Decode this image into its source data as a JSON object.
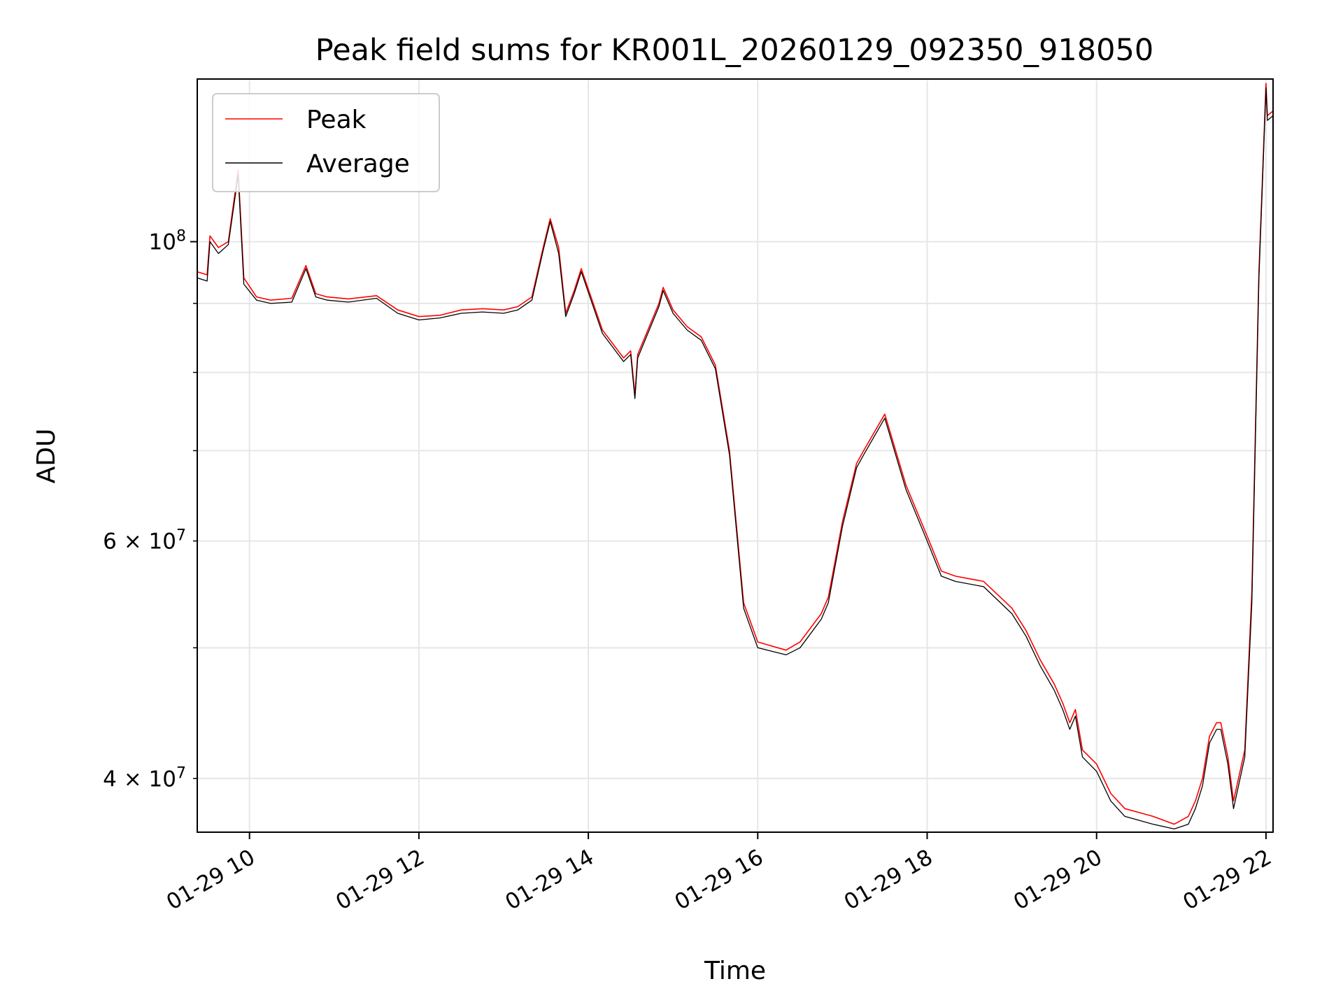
{
  "chart_data": {
    "type": "line",
    "title": "Peak field sums for KR001L_20260129_092350_918050",
    "xlabel": "Time",
    "ylabel": "ADU",
    "yscale": "log",
    "ylim": [
      36500000,
      132000000
    ],
    "xlim": [
      "2026-01-29 09:23",
      "2026-01-29 22:05"
    ],
    "grid": true,
    "legend_position": "top-left",
    "x_ticks": [
      "01-29 10",
      "01-29 12",
      "01-29 14",
      "01-29 16",
      "01-29 18",
      "01-29 20",
      "01-29 22"
    ],
    "y_ticks_major": [
      "10^8"
    ],
    "y_ticks_minor": [
      "6 × 10^7",
      "4 × 10^7"
    ],
    "series": [
      {
        "name": "Peak",
        "color": "#ff0000",
        "x": [
          "2026-01-29 09:23",
          "2026-01-29 09:30",
          "2026-01-29 09:32",
          "2026-01-29 09:38",
          "2026-01-29 09:45",
          "2026-01-29 09:52",
          "2026-01-29 09:56",
          "2026-01-29 10:05",
          "2026-01-29 10:15",
          "2026-01-29 10:30",
          "2026-01-29 10:40",
          "2026-01-29 10:47",
          "2026-01-29 10:55",
          "2026-01-29 11:10",
          "2026-01-29 11:30",
          "2026-01-29 11:45",
          "2026-01-29 12:00",
          "2026-01-29 12:15",
          "2026-01-29 12:30",
          "2026-01-29 12:45",
          "2026-01-29 13:00",
          "2026-01-29 13:10",
          "2026-01-29 13:20",
          "2026-01-29 13:28",
          "2026-01-29 13:33",
          "2026-01-29 13:39",
          "2026-01-29 13:44",
          "2026-01-29 13:50",
          "2026-01-29 13:55",
          "2026-01-29 14:10",
          "2026-01-29 14:25",
          "2026-01-29 14:30",
          "2026-01-29 14:33",
          "2026-01-29 14:35",
          "2026-01-29 14:50",
          "2026-01-29 14:53",
          "2026-01-29 15:00",
          "2026-01-29 15:10",
          "2026-01-29 15:20",
          "2026-01-29 15:30",
          "2026-01-29 15:40",
          "2026-01-29 15:50",
          "2026-01-29 16:00",
          "2026-01-29 16:20",
          "2026-01-29 16:30",
          "2026-01-29 16:45",
          "2026-01-29 16:50",
          "2026-01-29 17:00",
          "2026-01-29 17:10",
          "2026-01-29 17:15",
          "2026-01-29 17:30",
          "2026-01-29 17:45",
          "2026-01-29 18:00",
          "2026-01-29 18:10",
          "2026-01-29 18:20",
          "2026-01-29 18:40",
          "2026-01-29 19:00",
          "2026-01-29 19:10",
          "2026-01-29 19:20",
          "2026-01-29 19:30",
          "2026-01-29 19:36",
          "2026-01-29 19:41",
          "2026-01-29 19:45",
          "2026-01-29 19:50",
          "2026-01-29 20:00",
          "2026-01-29 20:10",
          "2026-01-29 20:20",
          "2026-01-29 20:40",
          "2026-01-29 20:55",
          "2026-01-29 21:05",
          "2026-01-29 21:10",
          "2026-01-29 21:15",
          "2026-01-29 21:20",
          "2026-01-29 21:25",
          "2026-01-29 21:28",
          "2026-01-29 21:33",
          "2026-01-29 21:37",
          "2026-01-29 21:45",
          "2026-01-29 21:50",
          "2026-01-29 21:55",
          "2026-01-29 22:00",
          "2026-01-29 22:01",
          "2026-01-29 22:05"
        ],
        "y": [
          95000000,
          94500000,
          101000000,
          99000000,
          100000000,
          113000000,
          94000000,
          91000000,
          90500000,
          90800000,
          96000000,
          91500000,
          91000000,
          90700000,
          91200000,
          89000000,
          88000000,
          88200000,
          89000000,
          89200000,
          89000000,
          89500000,
          91000000,
          99000000,
          104000000,
          99000000,
          88500000,
          92000000,
          95500000,
          86000000,
          82000000,
          83000000,
          77000000,
          82500000,
          90000000,
          92500000,
          89000000,
          86500000,
          85000000,
          81000000,
          70000000,
          54000000,
          50500000,
          49800000,
          50500000,
          53000000,
          54500000,
          62000000,
          68500000,
          70000000,
          74500000,
          66000000,
          60500000,
          57000000,
          56500000,
          56000000,
          53500000,
          51500000,
          49000000,
          47000000,
          45500000,
          44000000,
          45000000,
          42000000,
          41000000,
          39000000,
          38000000,
          37500000,
          37000000,
          37500000,
          38500000,
          40000000,
          43000000,
          44000000,
          44000000,
          41500000,
          38500000,
          42000000,
          55000000,
          95000000,
          131000000,
          124000000,
          125000000
        ]
      },
      {
        "name": "Average",
        "color": "#000000",
        "x": [
          "2026-01-29 09:23",
          "2026-01-29 09:30",
          "2026-01-29 09:32",
          "2026-01-29 09:38",
          "2026-01-29 09:45",
          "2026-01-29 09:52",
          "2026-01-29 09:56",
          "2026-01-29 10:05",
          "2026-01-29 10:15",
          "2026-01-29 10:30",
          "2026-01-29 10:40",
          "2026-01-29 10:47",
          "2026-01-29 10:55",
          "2026-01-29 11:10",
          "2026-01-29 11:30",
          "2026-01-29 11:45",
          "2026-01-29 12:00",
          "2026-01-29 12:15",
          "2026-01-29 12:30",
          "2026-01-29 12:45",
          "2026-01-29 13:00",
          "2026-01-29 13:10",
          "2026-01-29 13:20",
          "2026-01-29 13:28",
          "2026-01-29 13:33",
          "2026-01-29 13:39",
          "2026-01-29 13:44",
          "2026-01-29 13:50",
          "2026-01-29 13:55",
          "2026-01-29 14:10",
          "2026-01-29 14:25",
          "2026-01-29 14:30",
          "2026-01-29 14:33",
          "2026-01-29 14:35",
          "2026-01-29 14:50",
          "2026-01-29 14:53",
          "2026-01-29 15:00",
          "2026-01-29 15:10",
          "2026-01-29 15:20",
          "2026-01-29 15:30",
          "2026-01-29 15:40",
          "2026-01-29 15:50",
          "2026-01-29 16:00",
          "2026-01-29 16:20",
          "2026-01-29 16:30",
          "2026-01-29 16:45",
          "2026-01-29 16:50",
          "2026-01-29 17:00",
          "2026-01-29 17:10",
          "2026-01-29 17:15",
          "2026-01-29 17:30",
          "2026-01-29 17:45",
          "2026-01-29 18:00",
          "2026-01-29 18:10",
          "2026-01-29 18:20",
          "2026-01-29 18:40",
          "2026-01-29 19:00",
          "2026-01-29 19:10",
          "2026-01-29 19:20",
          "2026-01-29 19:30",
          "2026-01-29 19:36",
          "2026-01-29 19:41",
          "2026-01-29 19:45",
          "2026-01-29 19:50",
          "2026-01-29 20:00",
          "2026-01-29 20:10",
          "2026-01-29 20:20",
          "2026-01-29 20:40",
          "2026-01-29 20:55",
          "2026-01-29 21:05",
          "2026-01-29 21:10",
          "2026-01-29 21:15",
          "2026-01-29 21:20",
          "2026-01-29 21:25",
          "2026-01-29 21:28",
          "2026-01-29 21:33",
          "2026-01-29 21:37",
          "2026-01-29 21:45",
          "2026-01-29 21:50",
          "2026-01-29 21:55",
          "2026-01-29 22:00",
          "2026-01-29 22:01",
          "2026-01-29 22:05"
        ],
        "y": [
          94000000,
          93500000,
          100000000,
          98000000,
          99500000,
          112000000,
          93000000,
          90500000,
          90000000,
          90200000,
          95500000,
          91000000,
          90500000,
          90200000,
          90800000,
          88500000,
          87500000,
          87800000,
          88500000,
          88700000,
          88500000,
          89000000,
          90500000,
          98500000,
          103500000,
          98000000,
          88000000,
          91500000,
          95000000,
          85500000,
          81500000,
          82500000,
          76500000,
          82000000,
          89500000,
          92000000,
          88500000,
          86000000,
          84500000,
          80500000,
          69500000,
          53500000,
          50000000,
          49400000,
          50000000,
          52500000,
          54000000,
          61500000,
          68000000,
          69500000,
          74000000,
          65500000,
          60000000,
          56500000,
          56000000,
          55500000,
          53000000,
          51000000,
          48500000,
          46500000,
          45000000,
          43500000,
          44500000,
          41500000,
          40500000,
          38500000,
          37500000,
          37000000,
          36700000,
          37000000,
          38000000,
          39500000,
          42500000,
          43500000,
          43500000,
          41000000,
          38000000,
          41500000,
          54000000,
          94000000,
          130000000,
          123000000,
          124000000
        ]
      }
    ]
  }
}
